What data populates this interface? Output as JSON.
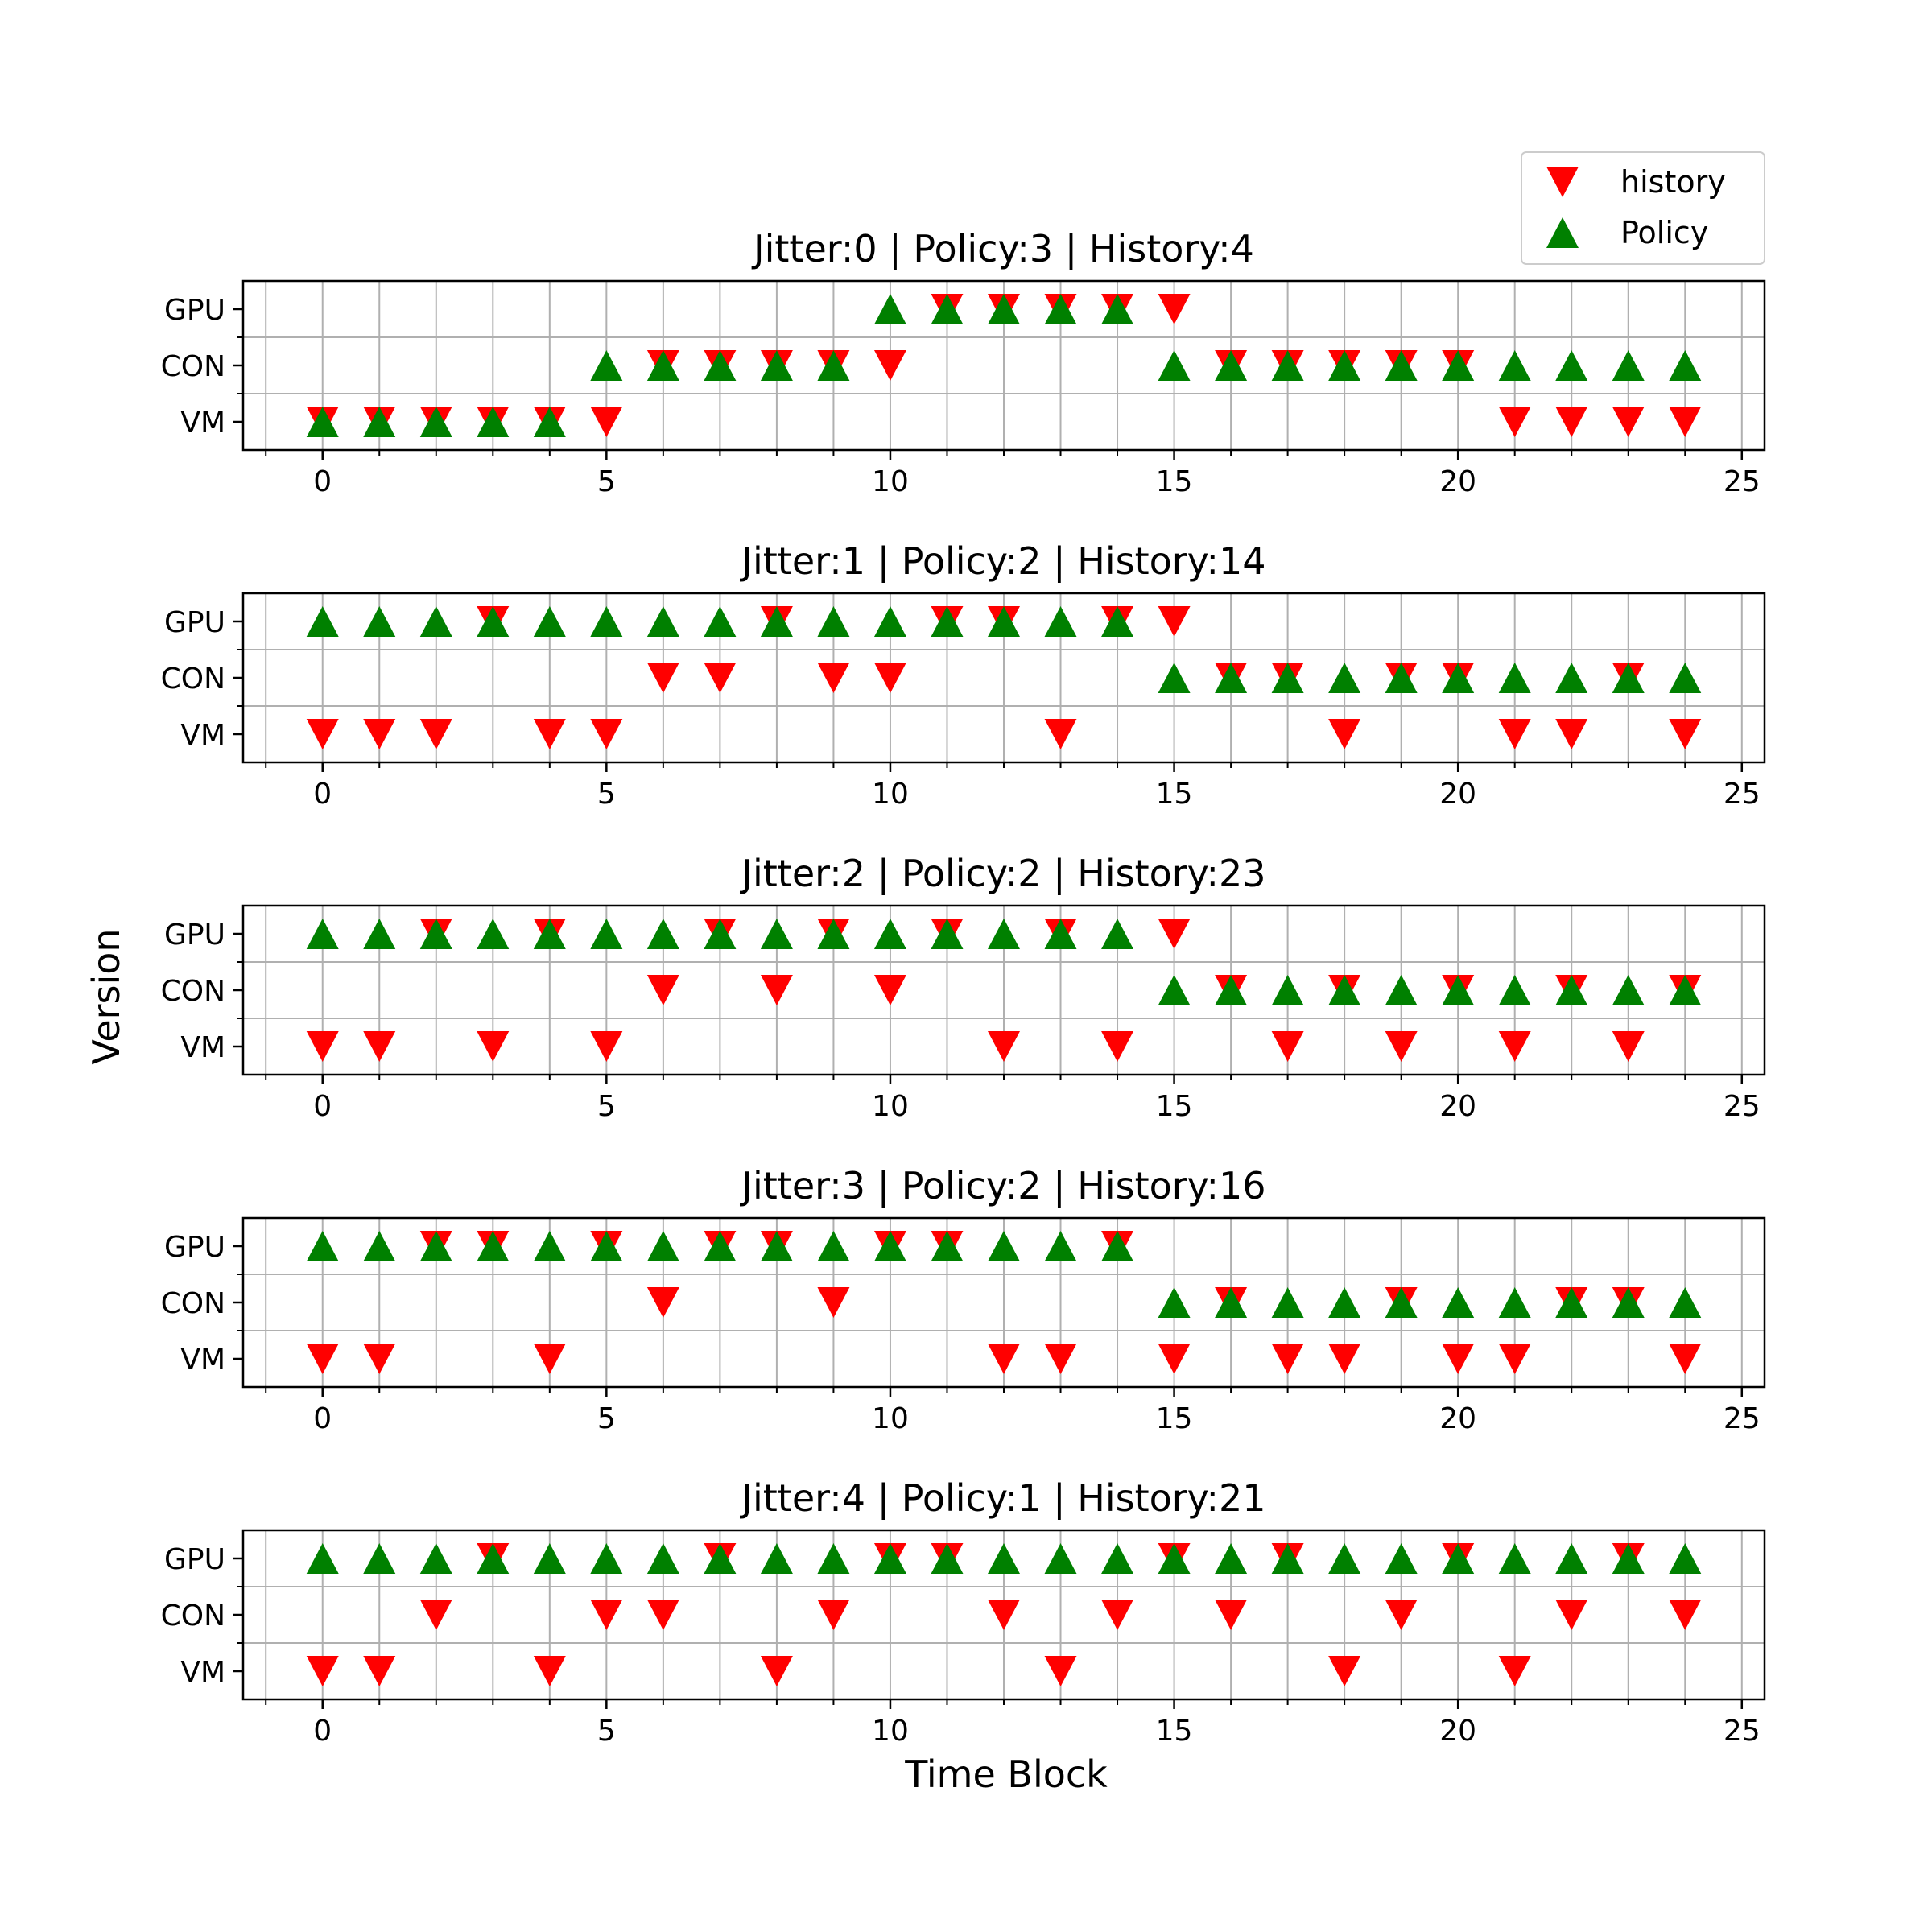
{
  "chart_data": {
    "type": "scatter",
    "xlabel": "Time Block",
    "ylabel": "Version",
    "xlim": [
      -1.4,
      25.4
    ],
    "x_ticks": [
      0,
      5,
      10,
      15,
      20,
      25
    ],
    "y_categories": [
      "VM",
      "CON",
      "GPU"
    ],
    "grid": true,
    "legend": {
      "placement": "top-right",
      "entries": [
        {
          "label": "history",
          "marker": "down-triangle",
          "color": "#ff0000"
        },
        {
          "label": "Policy",
          "marker": "up-triangle",
          "color": "#008000"
        }
      ]
    },
    "panels": [
      {
        "title": "Jitter:0 | Policy:3 | History:4",
        "history": [
          "VM",
          "VM",
          "VM",
          "VM",
          "VM",
          "VM",
          "CON",
          "CON",
          "CON",
          "CON",
          "CON",
          "GPU",
          "GPU",
          "GPU",
          "GPU",
          "GPU",
          "CON",
          "CON",
          "CON",
          "CON",
          "CON",
          "VM",
          "VM",
          "VM",
          "VM"
        ],
        "policy": [
          "VM",
          "VM",
          "VM",
          "VM",
          "VM",
          "CON",
          "CON",
          "CON",
          "CON",
          "CON",
          "GPU",
          "GPU",
          "GPU",
          "GPU",
          "GPU",
          "CON",
          "CON",
          "CON",
          "CON",
          "CON",
          "CON",
          "CON",
          "CON",
          "CON",
          "CON"
        ]
      },
      {
        "title": "Jitter:1 | Policy:2 | History:14",
        "history": [
          "VM",
          "VM",
          "VM",
          "GPU",
          "VM",
          "VM",
          "CON",
          "CON",
          "GPU",
          "CON",
          "CON",
          "GPU",
          "GPU",
          "VM",
          "GPU",
          "GPU",
          "CON",
          "CON",
          "VM",
          "CON",
          "CON",
          "VM",
          "VM",
          "CON",
          "VM"
        ],
        "policy": [
          "GPU",
          "GPU",
          "GPU",
          "GPU",
          "GPU",
          "GPU",
          "GPU",
          "GPU",
          "GPU",
          "GPU",
          "GPU",
          "GPU",
          "GPU",
          "GPU",
          "GPU",
          "CON",
          "CON",
          "CON",
          "CON",
          "CON",
          "CON",
          "CON",
          "CON",
          "CON",
          "CON"
        ]
      },
      {
        "title": "Jitter:2 | Policy:2 | History:23",
        "history": [
          "VM",
          "VM",
          "GPU",
          "VM",
          "GPU",
          "VM",
          "CON",
          "GPU",
          "CON",
          "GPU",
          "CON",
          "GPU",
          "VM",
          "GPU",
          "VM",
          "GPU",
          "CON",
          "VM",
          "CON",
          "VM",
          "CON",
          "VM",
          "CON",
          "VM",
          "CON"
        ],
        "policy": [
          "GPU",
          "GPU",
          "GPU",
          "GPU",
          "GPU",
          "GPU",
          "GPU",
          "GPU",
          "GPU",
          "GPU",
          "GPU",
          "GPU",
          "GPU",
          "GPU",
          "GPU",
          "CON",
          "CON",
          "CON",
          "CON",
          "CON",
          "CON",
          "CON",
          "CON",
          "CON",
          "CON"
        ]
      },
      {
        "title": "Jitter:3 | Policy:2 | History:16",
        "history": [
          "VM",
          "VM",
          "GPU",
          "GPU",
          "VM",
          "GPU",
          "CON",
          "GPU",
          "GPU",
          "CON",
          "GPU",
          "GPU",
          "VM",
          "VM",
          "GPU",
          "VM",
          "CON",
          "VM",
          "VM",
          "CON",
          "VM",
          "VM",
          "CON",
          "CON",
          "VM"
        ],
        "policy": [
          "GPU",
          "GPU",
          "GPU",
          "GPU",
          "GPU",
          "GPU",
          "GPU",
          "GPU",
          "GPU",
          "GPU",
          "GPU",
          "GPU",
          "GPU",
          "GPU",
          "GPU",
          "CON",
          "CON",
          "CON",
          "CON",
          "CON",
          "CON",
          "CON",
          "CON",
          "CON",
          "CON"
        ]
      },
      {
        "title": "Jitter:4 | Policy:1 | History:21",
        "history": [
          "VM",
          "VM",
          "CON",
          "GPU",
          "VM",
          "CON",
          "CON",
          "GPU",
          "VM",
          "CON",
          "GPU",
          "GPU",
          "CON",
          "VM",
          "CON",
          "GPU",
          "CON",
          "GPU",
          "VM",
          "CON",
          "GPU",
          "VM",
          "CON",
          "GPU",
          "CON"
        ],
        "policy": [
          "GPU",
          "GPU",
          "GPU",
          "GPU",
          "GPU",
          "GPU",
          "GPU",
          "GPU",
          "GPU",
          "GPU",
          "GPU",
          "GPU",
          "GPU",
          "GPU",
          "GPU",
          "GPU",
          "GPU",
          "GPU",
          "GPU",
          "GPU",
          "GPU",
          "GPU",
          "GPU",
          "GPU",
          "GPU"
        ]
      }
    ]
  }
}
